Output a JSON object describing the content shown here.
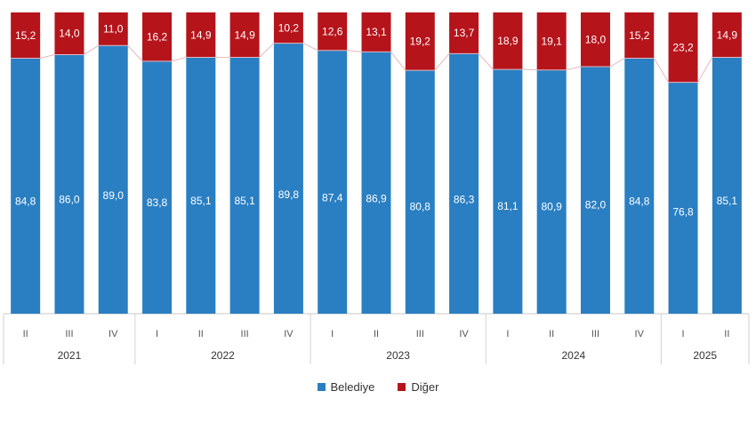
{
  "chart_data": {
    "type": "bar",
    "stacked": true,
    "normalized_to": 100,
    "categories": [
      {
        "quarter": "II",
        "year": "2021"
      },
      {
        "quarter": "III",
        "year": "2021"
      },
      {
        "quarter": "IV",
        "year": "2021"
      },
      {
        "quarter": "I",
        "year": "2022"
      },
      {
        "quarter": "II",
        "year": "2022"
      },
      {
        "quarter": "III",
        "year": "2022"
      },
      {
        "quarter": "IV",
        "year": "2022"
      },
      {
        "quarter": "I",
        "year": "2023"
      },
      {
        "quarter": "II",
        "year": "2023"
      },
      {
        "quarter": "III",
        "year": "2023"
      },
      {
        "quarter": "IV",
        "year": "2023"
      },
      {
        "quarter": "I",
        "year": "2024"
      },
      {
        "quarter": "II",
        "year": "2024"
      },
      {
        "quarter": "III",
        "year": "2024"
      },
      {
        "quarter": "IV",
        "year": "2024"
      },
      {
        "quarter": "I",
        "year": "2025"
      },
      {
        "quarter": "II",
        "year": "2025"
      }
    ],
    "year_groups": [
      {
        "label": "2021",
        "count": 3
      },
      {
        "label": "2022",
        "count": 4
      },
      {
        "label": "2023",
        "count": 4
      },
      {
        "label": "2024",
        "count": 4
      },
      {
        "label": "2025",
        "count": 2
      }
    ],
    "series": [
      {
        "name": "Belediye",
        "color": "#2a7fc2",
        "values": [
          84.8,
          86.0,
          89.0,
          83.8,
          85.1,
          85.1,
          89.8,
          87.4,
          86.9,
          80.8,
          86.3,
          81.1,
          80.9,
          82.0,
          84.8,
          76.8,
          85.1
        ],
        "labels": [
          "84,8",
          "86,0",
          "89,0",
          "83,8",
          "85,1",
          "85,1",
          "89,8",
          "87,4",
          "86,9",
          "80,8",
          "86,3",
          "81,1",
          "80,9",
          "82,0",
          "84,8",
          "76,8",
          "85,1"
        ]
      },
      {
        "name": "Diğer",
        "color": "#b5141b",
        "values": [
          15.2,
          14.0,
          11.0,
          16.2,
          14.9,
          14.9,
          10.2,
          12.6,
          13.1,
          19.2,
          13.7,
          18.9,
          19.1,
          18.0,
          15.2,
          23.2,
          14.9
        ],
        "labels": [
          "15,2",
          "14,0",
          "11,0",
          "16,2",
          "14,9",
          "14,9",
          "10,2",
          "12,6",
          "13,1",
          "19,2",
          "13,7",
          "18,9",
          "19,1",
          "18,0",
          "15,2",
          "23,2",
          "14,9"
        ]
      }
    ],
    "connector_line_color": "#e6b8bd",
    "legend_position": "bottom",
    "grid": false
  }
}
